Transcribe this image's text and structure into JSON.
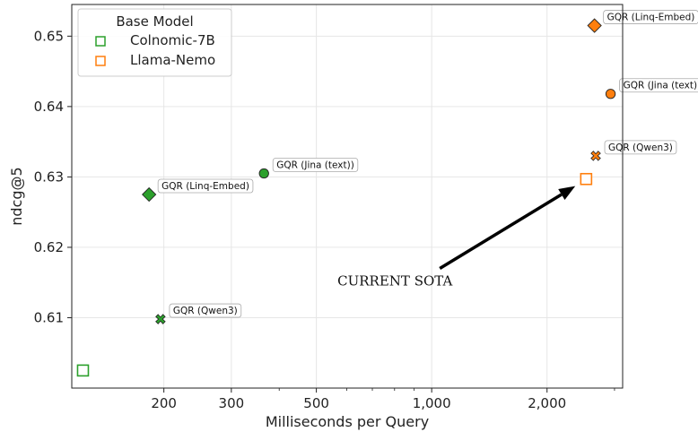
{
  "chart_data": {
    "type": "scatter",
    "xlabel": "Milliseconds per Query",
    "ylabel": "ndcg@5",
    "x_scale": "log",
    "xlim": [
      115,
      3150
    ],
    "ylim": [
      0.6,
      0.6545
    ],
    "x_ticks": [
      200,
      300,
      500,
      1000,
      2000
    ],
    "x_tick_labels": [
      "200",
      "300",
      "500",
      "1,000",
      "2,000"
    ],
    "y_ticks": [
      0.61,
      0.62,
      0.63,
      0.64,
      0.65
    ],
    "y_tick_labels": [
      "0.61",
      "0.62",
      "0.63",
      "0.64",
      "0.65"
    ],
    "grid": true,
    "legend": {
      "title": "Base Model",
      "placement": "top-left",
      "entries": [
        "Colnomic-7B",
        "Llama-Nemo"
      ]
    },
    "colors": {
      "Colnomic-7B": "#2ca02c",
      "Llama-Nemo": "#ff7f0e"
    },
    "series": [
      {
        "name": "Colnomic-7B",
        "points": [
          {
            "x": 123,
            "y": 0.6025,
            "marker": "open-square",
            "label": ""
          },
          {
            "x": 183,
            "y": 0.6275,
            "marker": "diamond",
            "label": "GQR (Linq-Embed)"
          },
          {
            "x": 196,
            "y": 0.6098,
            "marker": "x",
            "label": "GQR (Qwen3)"
          },
          {
            "x": 365,
            "y": 0.6305,
            "marker": "circle",
            "label": "GQR (Jina (text))"
          }
        ]
      },
      {
        "name": "Llama-Nemo",
        "points": [
          {
            "x": 2530,
            "y": 0.6297,
            "marker": "open-square",
            "label": ""
          },
          {
            "x": 2680,
            "y": 0.633,
            "marker": "x",
            "label": "GQR (Qwen3)"
          },
          {
            "x": 2660,
            "y": 0.6515,
            "marker": "diamond",
            "label": "GQR (Linq-Embed)"
          },
          {
            "x": 2930,
            "y": 0.6418,
            "marker": "circle",
            "label": "GQR (Jina (text))"
          }
        ]
      }
    ],
    "annotation": {
      "text": "CURRENT SOTA",
      "arrow_from": {
        "x": 1050,
        "y": 0.617
      },
      "arrow_to": {
        "x": 2370,
        "y": 0.6287
      }
    }
  }
}
